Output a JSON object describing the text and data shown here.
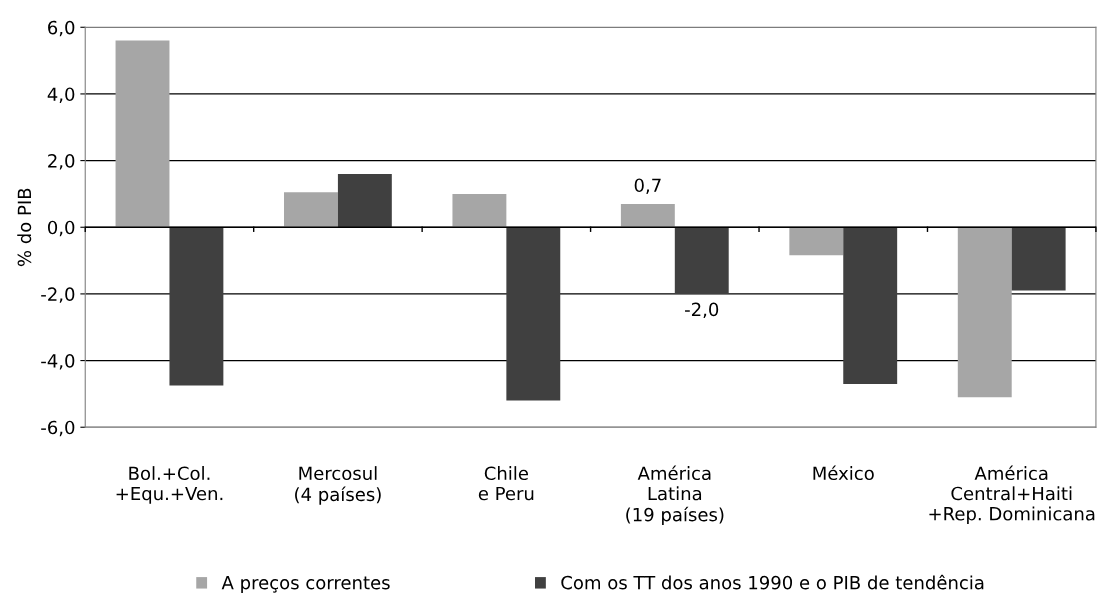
{
  "chart_data": {
    "type": "bar",
    "ylabel": "% do PIB",
    "categories": [
      "Bol.+Col.\n+Equ.+Ven.",
      "Mercosul\n(4 países)",
      "Chile\ne Peru",
      "América\nLatina\n(19 países)",
      "México",
      "América\nCentral+Haiti\n+Rep. Dominicana"
    ],
    "series": [
      {
        "name": "A preços correntes",
        "color": "#a6a6a6",
        "values": [
          5.6,
          1.05,
          1.0,
          0.7,
          -0.84,
          -5.1
        ],
        "value_labels": [
          null,
          null,
          null,
          "0,7",
          null,
          null
        ]
      },
      {
        "name": "Com os TT dos anos 1990 e o PIB de tendência",
        "color": "#404040",
        "values": [
          -4.75,
          1.6,
          -5.2,
          -2.0,
          -4.7,
          -1.9
        ],
        "value_labels": [
          null,
          null,
          null,
          "-2,0",
          null,
          null
        ]
      }
    ],
    "ylim": [
      -6,
      6
    ],
    "yticks": [
      {
        "value": -6,
        "label": "-6,0"
      },
      {
        "value": -4,
        "label": "-4,0"
      },
      {
        "value": -2,
        "label": "-2,0"
      },
      {
        "value": 0,
        "label": "0,0"
      },
      {
        "value": 2,
        "label": "2,0"
      },
      {
        "value": 4,
        "label": "4,0"
      },
      {
        "value": 6,
        "label": "6,0"
      }
    ],
    "grid": "y",
    "legend": "bottom"
  }
}
